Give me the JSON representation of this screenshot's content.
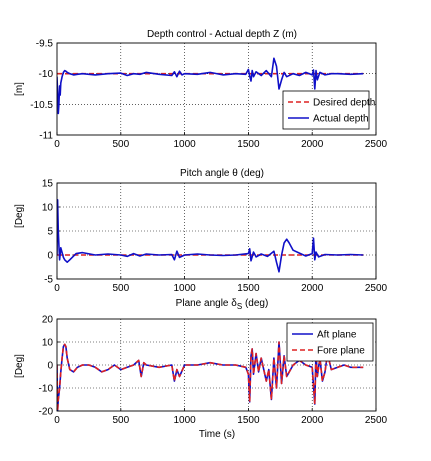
{
  "chart_data": [
    {
      "type": "line",
      "title": "Depth control - Actual depth Z (m)",
      "xlabel": "",
      "ylabel": "[m]",
      "xlim": [
        0,
        2500
      ],
      "ylim": [
        -11,
        -9.5
      ],
      "xticks": [
        "0",
        "500",
        "1000",
        "1500",
        "2000",
        "2500"
      ],
      "yticks": [
        "-11",
        "-10.5",
        "-10",
        "-9.5"
      ],
      "grid": true,
      "legend": "bottom-right",
      "series": [
        {
          "name": "Desired depth",
          "color": "#dd2222",
          "dash": true,
          "x": [
            0,
            2400
          ],
          "y": [
            -10,
            -10
          ]
        },
        {
          "name": "Actual depth",
          "color": "#1010c8",
          "dash": false,
          "x": [
            0,
            5,
            10,
            15,
            20,
            25,
            30,
            40,
            50,
            60,
            70,
            80,
            100,
            130,
            160,
            200,
            300,
            400,
            500,
            550,
            600,
            650,
            700,
            800,
            900,
            920,
            940,
            960,
            980,
            1000,
            1100,
            1200,
            1300,
            1400,
            1480,
            1500,
            1510,
            1520,
            1530,
            1540,
            1560,
            1600,
            1640,
            1680,
            1700,
            1720,
            1740,
            1760,
            1780,
            1800,
            1850,
            1900,
            1950,
            2000,
            2010,
            2020,
            2030,
            2040,
            2060,
            2100,
            2150,
            2200,
            2300,
            2400
          ],
          "y": [
            -10.05,
            -10.3,
            -10.65,
            -10.5,
            -10.2,
            -10.35,
            -10.15,
            -10.05,
            -9.98,
            -9.95,
            -9.96,
            -9.98,
            -10.0,
            -10.02,
            -10.01,
            -10.0,
            -10.02,
            -10.0,
            -9.99,
            -10.03,
            -10.0,
            -10.01,
            -9.98,
            -10.01,
            -10.03,
            -9.97,
            -10.05,
            -9.96,
            -10.02,
            -10.0,
            -10.01,
            -9.98,
            -10.02,
            -10.0,
            -10.01,
            -9.93,
            -10.04,
            -10.12,
            -9.95,
            -10.05,
            -9.97,
            -10.03,
            -9.95,
            -10.05,
            -9.75,
            -9.88,
            -10.25,
            -10.1,
            -9.98,
            -10.05,
            -10.0,
            -10.03,
            -9.98,
            -10.02,
            -9.94,
            -10.25,
            -9.95,
            -10.1,
            -9.98,
            -10.02,
            -10.0,
            -10.0,
            -10.01,
            -10.0
          ]
        }
      ]
    },
    {
      "type": "line",
      "title": "Pitch angle θ (deg)",
      "xlabel": "",
      "ylabel": "[Deg]",
      "xlim": [
        0,
        2500
      ],
      "ylim": [
        -5,
        15
      ],
      "xticks": [
        "0",
        "500",
        "1000",
        "1500",
        "2000",
        "2500"
      ],
      "yticks": [
        "-5",
        "0",
        "5",
        "10",
        "15"
      ],
      "grid": true,
      "series": [
        {
          "name": "",
          "color": "#dd2222",
          "dash": true,
          "x": [
            0,
            2400
          ],
          "y": [
            0,
            0
          ]
        },
        {
          "name": "",
          "color": "#1010c8",
          "dash": false,
          "x": [
            0,
            5,
            10,
            15,
            20,
            30,
            40,
            50,
            60,
            80,
            100,
            150,
            200,
            300,
            400,
            500,
            550,
            600,
            650,
            700,
            800,
            900,
            920,
            940,
            960,
            1000,
            1100,
            1200,
            1300,
            1400,
            1500,
            1510,
            1520,
            1540,
            1560,
            1600,
            1650,
            1700,
            1720,
            1740,
            1760,
            1780,
            1800,
            1820,
            1850,
            1900,
            1950,
            2000,
            2010,
            2020,
            2030,
            2050,
            2100,
            2200,
            2300,
            2400
          ],
          "y": [
            0,
            11.5,
            5,
            2,
            -1,
            1.5,
            0.5,
            -0.5,
            -1,
            -1.5,
            -1,
            0.3,
            0.5,
            0,
            0.2,
            0,
            -0.3,
            0.3,
            -0.2,
            0.2,
            0,
            0.1,
            -1,
            0.8,
            -0.5,
            0,
            0.2,
            0,
            -0.1,
            0,
            0.3,
            1.3,
            -1.2,
            0.6,
            -0.4,
            0.2,
            -0.3,
            0.8,
            -1.5,
            -3.5,
            0,
            2.5,
            3.3,
            2.5,
            1.0,
            0.4,
            -0.2,
            0.3,
            3.5,
            -1.0,
            0.6,
            -0.4,
            0.1,
            0,
            0.1,
            0
          ]
        }
      ]
    },
    {
      "type": "line",
      "title": "Plane angle δ",
      "title_sub": "S",
      "title_tail": " (deg)",
      "xlabel": "Time (s)",
      "ylabel": "[Deg]",
      "xlim": [
        0,
        2500
      ],
      "ylim": [
        -20,
        20
      ],
      "xticks": [
        "0",
        "500",
        "1000",
        "1500",
        "2000",
        "2500"
      ],
      "yticks": [
        "-20",
        "-10",
        "0",
        "10",
        "20"
      ],
      "grid": true,
      "legend": "top-right",
      "series": [
        {
          "name": "Aft plane",
          "color": "#1010c8",
          "dash": false,
          "x": [
            0,
            5,
            10,
            20,
            30,
            40,
            50,
            60,
            70,
            80,
            100,
            130,
            160,
            200,
            250,
            300,
            350,
            400,
            450,
            500,
            550,
            600,
            640,
            660,
            680,
            700,
            800,
            900,
            920,
            940,
            960,
            1000,
            1100,
            1200,
            1300,
            1400,
            1480,
            1500,
            1510,
            1520,
            1530,
            1540,
            1560,
            1580,
            1600,
            1640,
            1660,
            1680,
            1700,
            1720,
            1740,
            1760,
            1780,
            1800,
            1850,
            1900,
            1950,
            2000,
            2020,
            2030,
            2040,
            2060,
            2080,
            2100,
            2120,
            2150,
            2200,
            2250,
            2300,
            2400
          ],
          "y": [
            0,
            -20,
            -15,
            -10,
            -3,
            3,
            8,
            9,
            8,
            3,
            -2,
            -3,
            -1,
            0,
            0,
            -1,
            -3,
            -2,
            0,
            -2,
            -1,
            0,
            2,
            -5,
            1,
            0,
            -1,
            0,
            -7,
            -2,
            -5,
            0,
            0,
            1,
            0,
            0,
            -1,
            -4,
            -16,
            4,
            7,
            -4,
            5,
            -3,
            3,
            -7,
            -2,
            -15,
            3,
            -10,
            10,
            -8,
            4,
            -5,
            0,
            2,
            0,
            -1,
            -17,
            6,
            -5,
            3,
            -7,
            -3,
            5,
            -2,
            -1,
            0,
            -1,
            -1
          ]
        },
        {
          "name": "Fore plane",
          "color": "#dd2222",
          "dash": true,
          "x": [
            0,
            5,
            10,
            20,
            30,
            40,
            50,
            60,
            70,
            80,
            100,
            130,
            160,
            200,
            250,
            300,
            350,
            400,
            450,
            500,
            550,
            600,
            640,
            660,
            680,
            700,
            800,
            900,
            920,
            940,
            960,
            1000,
            1100,
            1200,
            1300,
            1400,
            1480,
            1500,
            1510,
            1520,
            1530,
            1540,
            1560,
            1580,
            1600,
            1640,
            1660,
            1680,
            1700,
            1720,
            1740,
            1760,
            1780,
            1800,
            1850,
            1900,
            1950,
            2000,
            2020,
            2030,
            2040,
            2060,
            2080,
            2100,
            2120,
            2150,
            2200,
            2250,
            2300,
            2400
          ],
          "y": [
            0,
            -20,
            -15,
            -10,
            -3,
            3,
            8,
            9,
            8,
            3,
            -2,
            -3,
            -1,
            0,
            0,
            -1,
            -3,
            -2,
            0,
            -2,
            -1,
            0,
            2,
            -5,
            1,
            0,
            -1,
            0,
            -7,
            -2,
            -5,
            0,
            0,
            1,
            0,
            0,
            -1,
            -4,
            -16,
            4,
            7,
            -4,
            5,
            -3,
            3,
            -7,
            -2,
            -15,
            3,
            -10,
            10,
            -8,
            4,
            -5,
            0,
            2,
            0,
            -1,
            -17,
            6,
            -5,
            3,
            -7,
            -3,
            5,
            -2,
            -1,
            0,
            -1,
            -1
          ]
        }
      ]
    }
  ]
}
